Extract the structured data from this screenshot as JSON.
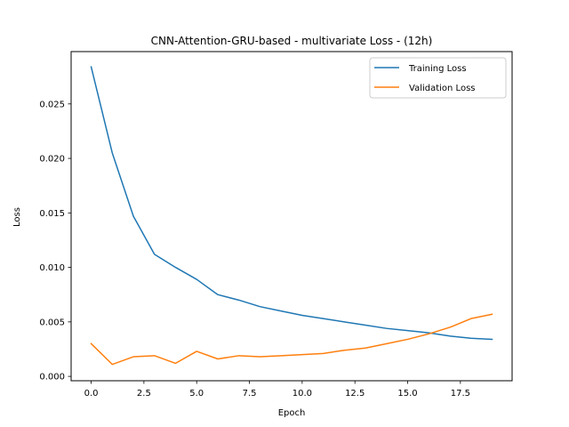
{
  "chart_data": {
    "type": "line",
    "title": "CNN-Attention-GRU-based - multivariate Loss - (12h)",
    "xlabel": "Epoch",
    "ylabel": "Loss",
    "xlim": [
      -0.95,
      19.95
    ],
    "ylim": [
      -0.0004,
      0.0298
    ],
    "x": [
      0,
      1,
      2,
      3,
      4,
      5,
      6,
      7,
      8,
      9,
      10,
      11,
      12,
      13,
      14,
      15,
      16,
      17,
      18,
      19
    ],
    "xticks": [
      0.0,
      2.5,
      5.0,
      7.5,
      10.0,
      12.5,
      15.0,
      17.5
    ],
    "xtick_labels": [
      "0.0",
      "2.5",
      "5.0",
      "7.5",
      "10.0",
      "12.5",
      "15.0",
      "17.5"
    ],
    "yticks": [
      0.0,
      0.005,
      0.01,
      0.015,
      0.02,
      0.025
    ],
    "ytick_labels": [
      "0.000",
      "0.005",
      "0.010",
      "0.015",
      "0.020",
      "0.025"
    ],
    "legend_position": "top-right",
    "grid": false,
    "series": [
      {
        "name": "Training Loss",
        "color": "#1f77b4",
        "values": [
          0.0284,
          0.0205,
          0.0147,
          0.0112,
          0.01,
          0.0089,
          0.0075,
          0.007,
          0.0064,
          0.006,
          0.0056,
          0.0053,
          0.005,
          0.0047,
          0.0044,
          0.0042,
          0.004,
          0.0037,
          0.0035,
          0.0034
        ]
      },
      {
        "name": "Validation Loss",
        "color": "#ff7f0e",
        "values": [
          0.003,
          0.0011,
          0.0018,
          0.0019,
          0.0012,
          0.0023,
          0.0016,
          0.0019,
          0.0018,
          0.0019,
          0.002,
          0.0021,
          0.0024,
          0.0026,
          0.003,
          0.0034,
          0.0039,
          0.0045,
          0.0053,
          0.0057
        ]
      }
    ]
  }
}
